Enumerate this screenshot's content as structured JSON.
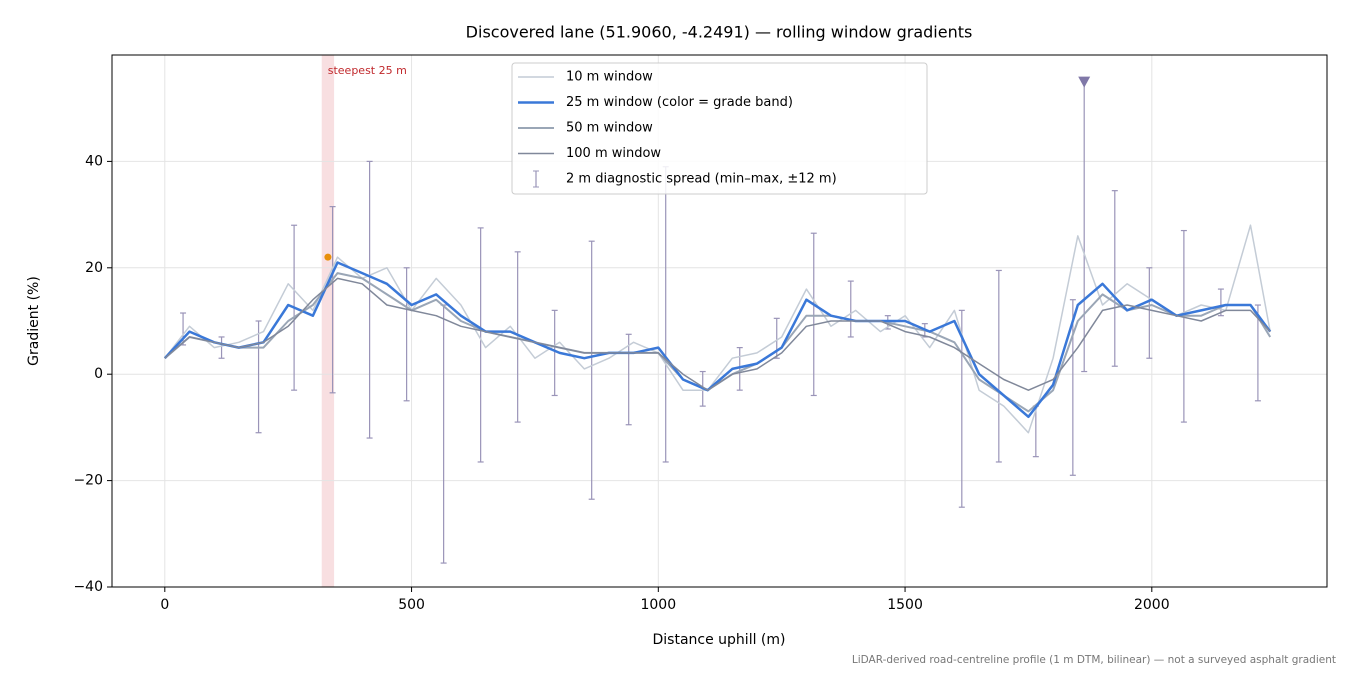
{
  "chart_data": {
    "type": "line",
    "title": "Discovered lane (51.9060, -4.2491) — rolling window gradients",
    "x_label": "Distance uphill (m)",
    "y_label": "Gradient (%)",
    "footnote": "LiDAR-derived road-centreline profile (1 m DTM, bilinear) — not a surveyed asphalt gradient",
    "xlim": [
      -107,
      2355
    ],
    "ylim": [
      -40,
      60
    ],
    "xticks": [
      0,
      500,
      1000,
      1500,
      2000
    ],
    "yticks": [
      {
        "value": -40,
        "label": "−40"
      },
      {
        "value": -20,
        "label": "−20"
      },
      0,
      20,
      40
    ],
    "grid": true,
    "legend": "upper center",
    "x": [
      0,
      50,
      100,
      150,
      200,
      250,
      300,
      350,
      400,
      450,
      500,
      550,
      600,
      650,
      700,
      750,
      800,
      850,
      900,
      950,
      1000,
      1050,
      1100,
      1150,
      1200,
      1250,
      1300,
      1350,
      1400,
      1450,
      1500,
      1550,
      1600,
      1650,
      1700,
      1750,
      1800,
      1850,
      1900,
      1950,
      2000,
      2050,
      2100,
      2150,
      2200,
      2240
    ],
    "series": [
      {
        "name": "10 m window",
        "color": "#c4ccd6",
        "width": 1.5,
        "values": [
          3,
          9,
          5,
          6,
          8,
          17,
          12,
          22,
          18,
          20,
          12,
          18,
          13,
          5,
          9,
          3,
          6,
          1,
          3,
          6,
          4,
          -3,
          -3,
          3,
          4,
          7,
          16,
          9,
          12,
          8,
          11,
          5,
          12,
          -3,
          -6,
          -11,
          3,
          26,
          13,
          17,
          14,
          11,
          13,
          12,
          28,
          8
        ]
      },
      {
        "name": "50 m window",
        "color": "#9aa6b6",
        "width": 2,
        "values": [
          3,
          7,
          6,
          5,
          5,
          10,
          13,
          19,
          18,
          15,
          12,
          14,
          10,
          8,
          7,
          6,
          5,
          4,
          4,
          4,
          4,
          -1,
          -3,
          0,
          2,
          5,
          11,
          11,
          10,
          10,
          9,
          8,
          6,
          -1,
          -4,
          -7,
          -3,
          10,
          15,
          12,
          13,
          11,
          11,
          13,
          13,
          7
        ]
      },
      {
        "name": "25 m window (color = grade band)",
        "color": "#3a78d8",
        "width": 2.5,
        "values": [
          3,
          8,
          6,
          5,
          6,
          13,
          11,
          21,
          19,
          17,
          13,
          15,
          11,
          8,
          8,
          6,
          4,
          3,
          4,
          4,
          5,
          -1,
          -3,
          1,
          2,
          5,
          14,
          11,
          10,
          10,
          10,
          8,
          10,
          0,
          -4,
          -8,
          -2,
          13,
          17,
          12,
          14,
          11,
          12,
          13,
          13,
          8
        ]
      },
      {
        "name": "100 m window",
        "color": "#80889a",
        "width": 1.5,
        "values": [
          3,
          7,
          6,
          5,
          6,
          9,
          14,
          18,
          17,
          13,
          12,
          11,
          9,
          8,
          7,
          6,
          5,
          4,
          4,
          4,
          4,
          0,
          -3,
          0,
          1,
          4,
          9,
          10,
          10,
          10,
          8,
          7,
          5,
          2,
          -1,
          -3,
          -1,
          5,
          12,
          13,
          12,
          11,
          10,
          12,
          12,
          8
        ]
      }
    ],
    "errorbars": {
      "name": "2 m diagnostic spread (min–max, ±12 m)",
      "color": "#9a94b8",
      "x": [
        37,
        115,
        190,
        262,
        340,
        415,
        490,
        565,
        640,
        715,
        790,
        865,
        940,
        1015,
        1090,
        1165,
        1240,
        1315,
        1390,
        1465,
        1540,
        1615,
        1690,
        1765,
        1840,
        1863,
        1925,
        1995,
        2065,
        2140,
        2215
      ],
      "lo": [
        5.5,
        3,
        -11,
        -3,
        -3.5,
        -12,
        -5,
        -35.5,
        -16.5,
        -9,
        -4,
        -23.5,
        -9.5,
        -16.5,
        -6,
        -3,
        3,
        -4,
        7,
        8.5,
        7,
        -25,
        -16.5,
        -15.5,
        -19,
        0.5,
        1.5,
        3,
        -9,
        11,
        -5
      ],
      "hi": [
        11.5,
        7,
        10,
        28,
        31.5,
        40,
        20,
        13,
        27.5,
        23,
        12,
        25,
        7.5,
        39,
        0.5,
        5,
        10.5,
        26.5,
        17.5,
        11,
        9.5,
        12,
        19.5,
        -6,
        14,
        55,
        34.5,
        20,
        27,
        16,
        13
      ]
    },
    "clipped_marker": {
      "x": 1863,
      "y": 55,
      "color": "#8078a8"
    },
    "steepest": {
      "label": "steepest 25 m",
      "x": [
        318,
        343
      ],
      "color": "#f0b8bc",
      "peak": 22,
      "peak_color": "#e8900c"
    }
  }
}
